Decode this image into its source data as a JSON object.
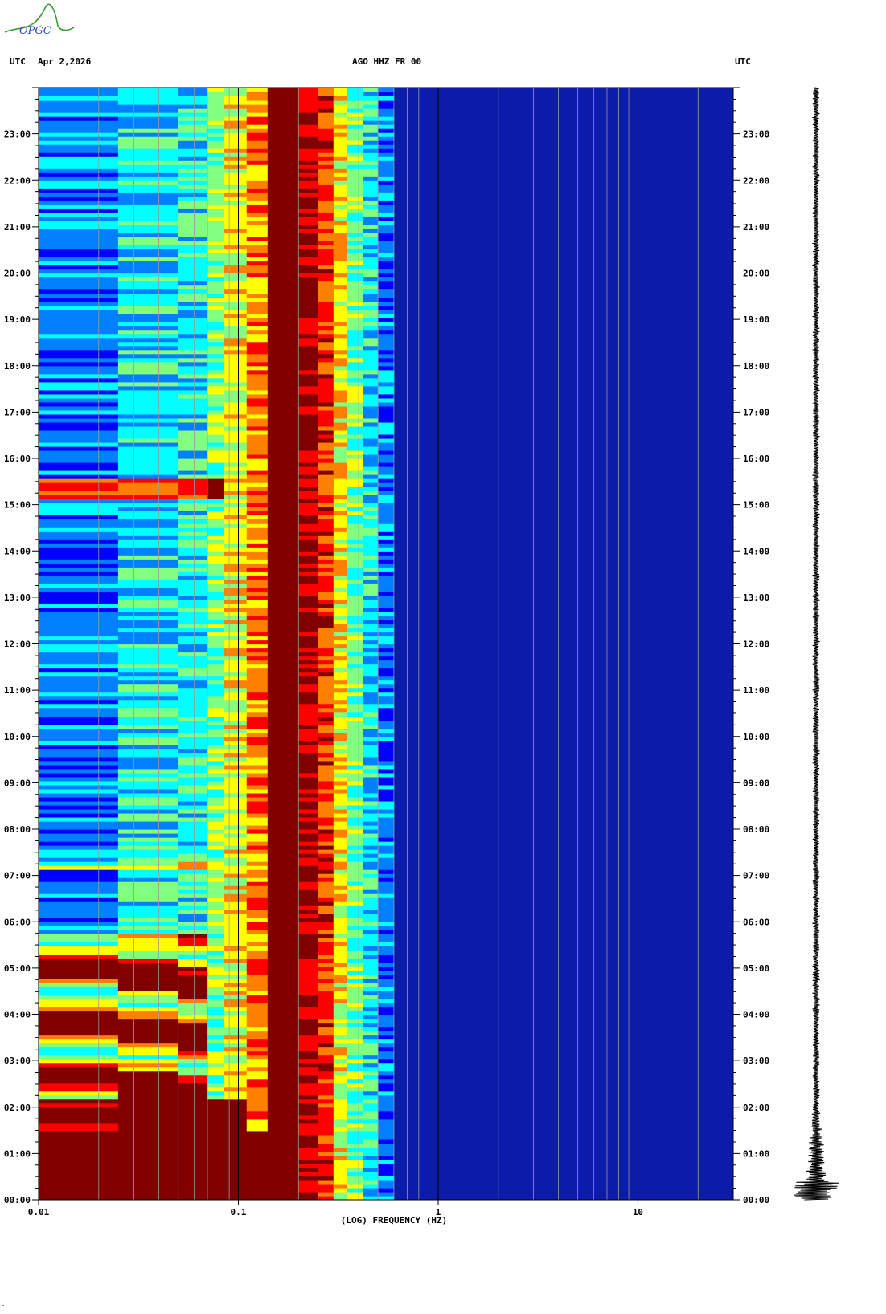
{
  "header": {
    "left_tz": "UTC",
    "date": "Apr 2,2026",
    "station": "AGO HHZ FR 00",
    "right_tz": "UTC"
  },
  "logo": {
    "text": "OPGC"
  },
  "corner_mark": "·",
  "chart_data": {
    "type": "heatmap",
    "title": "AGO HHZ FR 00",
    "xlabel": "(LOG) FREQUENCY (HZ)",
    "x_scale": "log",
    "xlim": [
      0.01,
      30
    ],
    "x_tick_values": [
      0.01,
      0.1,
      1,
      10
    ],
    "x_tick_labels": [
      "0.01",
      "0.1",
      "1",
      "10"
    ],
    "y_unit": "hours UTC",
    "ylim": [
      0,
      24
    ],
    "y_tick_labels": [
      "00:00",
      "01:00",
      "02:00",
      "03:00",
      "04:00",
      "05:00",
      "06:00",
      "07:00",
      "08:00",
      "09:00",
      "10:00",
      "11:00",
      "12:00",
      "13:00",
      "14:00",
      "15:00",
      "16:00",
      "17:00",
      "18:00",
      "19:00",
      "20:00",
      "21:00",
      "22:00",
      "23:00"
    ],
    "colormap": [
      "#00008f",
      "#0000ff",
      "#0080ff",
      "#00ffff",
      "#80ff80",
      "#ffff00",
      "#ff8000",
      "#ff0000",
      "#800000"
    ],
    "background_color": "#0a1ca8",
    "grid_color": "#9a9a9a",
    "seismogram_color": "#000000"
  }
}
